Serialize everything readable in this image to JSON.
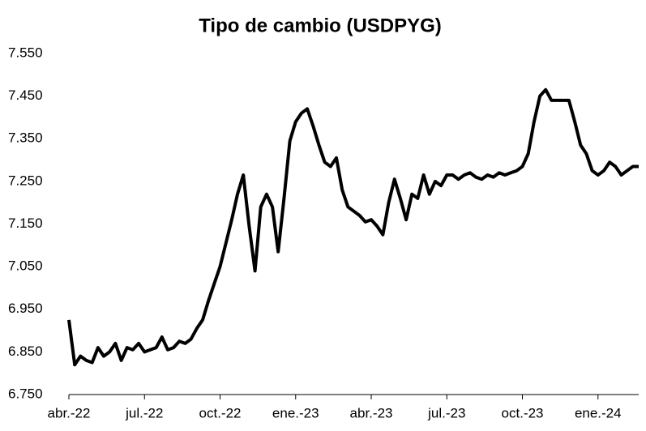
{
  "chart_data": {
    "type": "line",
    "title": "Tipo de cambio (USDPYG)",
    "categories": [
      "abr.-22",
      null,
      null,
      null,
      null,
      null,
      null,
      null,
      null,
      null,
      null,
      null,
      null,
      "jul.-22",
      null,
      null,
      null,
      null,
      null,
      null,
      null,
      null,
      null,
      null,
      null,
      null,
      "oct.-22",
      null,
      null,
      null,
      null,
      null,
      null,
      null,
      null,
      null,
      null,
      null,
      null,
      "ene.-23",
      null,
      null,
      null,
      null,
      null,
      null,
      null,
      null,
      null,
      null,
      null,
      null,
      "abr.-23",
      null,
      null,
      null,
      null,
      null,
      null,
      null,
      null,
      null,
      null,
      null,
      null,
      "jul.-23",
      null,
      null,
      null,
      null,
      null,
      null,
      null,
      null,
      null,
      null,
      null,
      null,
      "oct.-23",
      null,
      null,
      null,
      null,
      null,
      null,
      null,
      null,
      null,
      null,
      null,
      null,
      "ene.-24",
      null,
      null,
      null,
      null,
      null,
      null,
      null
    ],
    "series": [
      {
        "color": "#000000",
        "values": [
          6925,
          6820,
          6840,
          6830,
          6825,
          6860,
          6840,
          6850,
          6870,
          6830,
          6860,
          6855,
          6870,
          6850,
          6855,
          6860,
          6885,
          6855,
          6860,
          6875,
          6870,
          6880,
          6905,
          6925,
          6970,
          7010,
          7050,
          7105,
          7160,
          7220,
          7265,
          7145,
          7040,
          7190,
          7220,
          7190,
          7085,
          7210,
          7345,
          7390,
          7410,
          7420,
          7380,
          7335,
          7295,
          7285,
          7305,
          7230,
          7190,
          7180,
          7170,
          7155,
          7160,
          7145,
          7125,
          7200,
          7255,
          7210,
          7160,
          7220,
          7210,
          7265,
          7220,
          7250,
          7240,
          7265,
          7265,
          7255,
          7265,
          7270,
          7260,
          7255,
          7265,
          7260,
          7270,
          7265,
          7270,
          7275,
          7285,
          7315,
          7390,
          7450,
          7465,
          7440,
          7440,
          7440,
          7440,
          7390,
          7335,
          7315,
          7275,
          7265,
          7275,
          7295,
          7285,
          7265,
          7275,
          7285,
          7285
        ]
      }
    ],
    "ylim": [
      6750,
      7550
    ],
    "yticks": [
      {
        "value": 6750,
        "label": "6.750"
      },
      {
        "value": 6850,
        "label": "6.850"
      },
      {
        "value": 6950,
        "label": "6.950"
      },
      {
        "value": 7050,
        "label": "7.050"
      },
      {
        "value": 7150,
        "label": "7.150"
      },
      {
        "value": 7250,
        "label": "7.250"
      },
      {
        "value": 7350,
        "label": "7.350"
      },
      {
        "value": 7450,
        "label": "7.450"
      },
      {
        "value": 7550,
        "label": "7.550"
      }
    ]
  }
}
